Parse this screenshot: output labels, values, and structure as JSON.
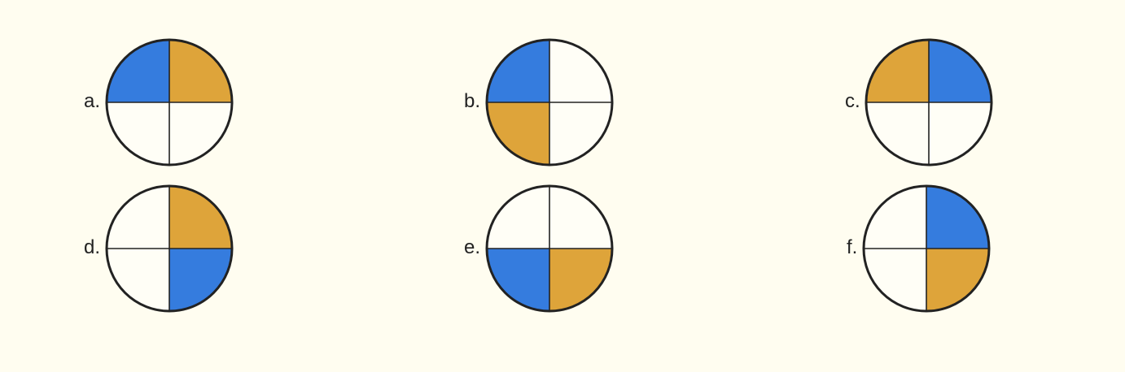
{
  "colors": {
    "background": "#fffdf0",
    "blue": "#357cde",
    "gold": "#dea43a",
    "white": "#fffef6",
    "outline": "#222222",
    "divider": "#222222"
  },
  "options": [
    {
      "label": "a.",
      "quadrants": {
        "top_left": "blue",
        "top_right": "gold",
        "bottom_left": "white",
        "bottom_right": "white"
      }
    },
    {
      "label": "b.",
      "quadrants": {
        "top_left": "blue",
        "top_right": "white",
        "bottom_left": "gold",
        "bottom_right": "white"
      }
    },
    {
      "label": "c.",
      "quadrants": {
        "top_left": "gold",
        "top_right": "blue",
        "bottom_left": "white",
        "bottom_right": "white"
      }
    },
    {
      "label": "d.",
      "quadrants": {
        "top_left": "white",
        "top_right": "gold",
        "bottom_left": "white",
        "bottom_right": "blue"
      }
    },
    {
      "label": "e.",
      "quadrants": {
        "top_left": "white",
        "top_right": "white",
        "bottom_left": "blue",
        "bottom_right": "gold"
      }
    },
    {
      "label": "f.",
      "quadrants": {
        "top_left": "white",
        "top_right": "blue",
        "bottom_left": "white",
        "bottom_right": "gold"
      }
    }
  ]
}
